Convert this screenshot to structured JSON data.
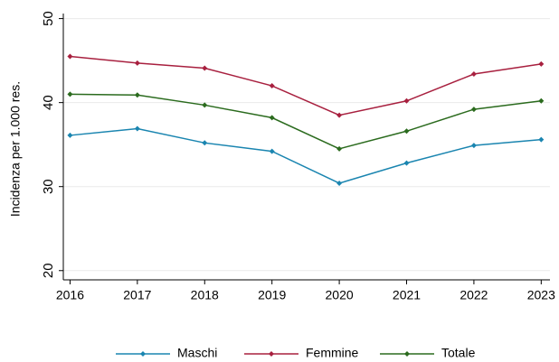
{
  "chart_data": {
    "type": "line",
    "ylabel": "Incidenza per 1.000 res.",
    "x": [
      2016,
      2017,
      2018,
      2019,
      2020,
      2021,
      2022,
      2023
    ],
    "series": [
      {
        "name": "Maschi",
        "color": "#1a85b0",
        "values": [
          36.1,
          36.9,
          35.2,
          34.2,
          30.4,
          32.8,
          34.9,
          35.6
        ]
      },
      {
        "name": "Femmine",
        "color": "#a8203f",
        "values": [
          45.5,
          44.7,
          44.1,
          42.0,
          38.5,
          40.2,
          43.4,
          44.6
        ]
      },
      {
        "name": "Totale",
        "color": "#2b6b1e",
        "values": [
          41.0,
          40.9,
          39.7,
          38.2,
          34.5,
          36.6,
          39.2,
          40.2
        ]
      }
    ],
    "xlim": [
      2015.9,
      2023.13
    ],
    "xticks": [
      2016,
      2017,
      2018,
      2019,
      2020,
      2021,
      2022,
      2023
    ],
    "ylim": [
      18.9,
      50.6
    ],
    "yticks": [
      20,
      30,
      40,
      50
    ],
    "grid": true,
    "legend": "bottom"
  }
}
